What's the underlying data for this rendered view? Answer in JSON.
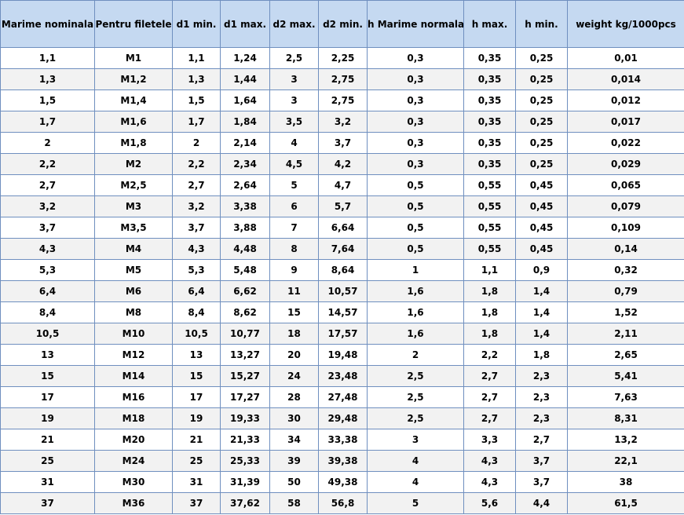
{
  "table": {
    "headers": [
      "Marime nominala",
      "Pentru filetele",
      "d1 min.",
      "d1 max.",
      "d2 max.",
      "d2 min.",
      "h Marime normala",
      "h max.",
      "h min.",
      "weight kg/1000pcs"
    ],
    "rows": [
      [
        "1,1",
        "M1",
        "1,1",
        "1,24",
        "2,5",
        "2,25",
        "0,3",
        "0,35",
        "0,25",
        "0,01"
      ],
      [
        "1,3",
        "M1,2",
        "1,3",
        "1,44",
        "3",
        "2,75",
        "0,3",
        "0,35",
        "0,25",
        "0,014"
      ],
      [
        "1,5",
        "M1,4",
        "1,5",
        "1,64",
        "3",
        "2,75",
        "0,3",
        "0,35",
        "0,25",
        "0,012"
      ],
      [
        "1,7",
        "M1,6",
        "1,7",
        "1,84",
        "3,5",
        "3,2",
        "0,3",
        "0,35",
        "0,25",
        "0,017"
      ],
      [
        "2",
        "M1,8",
        "2",
        "2,14",
        "4",
        "3,7",
        "0,3",
        "0,35",
        "0,25",
        "0,022"
      ],
      [
        "2,2",
        "M2",
        "2,2",
        "2,34",
        "4,5",
        "4,2",
        "0,3",
        "0,35",
        "0,25",
        "0,029"
      ],
      [
        "2,7",
        "M2,5",
        "2,7",
        "2,64",
        "5",
        "4,7",
        "0,5",
        "0,55",
        "0,45",
        "0,065"
      ],
      [
        "3,2",
        "M3",
        "3,2",
        "3,38",
        "6",
        "5,7",
        "0,5",
        "0,55",
        "0,45",
        "0,079"
      ],
      [
        "3,7",
        "M3,5",
        "3,7",
        "3,88",
        "7",
        "6,64",
        "0,5",
        "0,55",
        "0,45",
        "0,109"
      ],
      [
        "4,3",
        "M4",
        "4,3",
        "4,48",
        "8",
        "7,64",
        "0,5",
        "0,55",
        "0,45",
        "0,14"
      ],
      [
        "5,3",
        "M5",
        "5,3",
        "5,48",
        "9",
        "8,64",
        "1",
        "1,1",
        "0,9",
        "0,32"
      ],
      [
        "6,4",
        "M6",
        "6,4",
        "6,62",
        "11",
        "10,57",
        "1,6",
        "1,8",
        "1,4",
        "0,79"
      ],
      [
        "8,4",
        "M8",
        "8,4",
        "8,62",
        "15",
        "14,57",
        "1,6",
        "1,8",
        "1,4",
        "1,52"
      ],
      [
        "10,5",
        "M10",
        "10,5",
        "10,77",
        "18",
        "17,57",
        "1,6",
        "1,8",
        "1,4",
        "2,11"
      ],
      [
        "13",
        "M12",
        "13",
        "13,27",
        "20",
        "19,48",
        "2",
        "2,2",
        "1,8",
        "2,65"
      ],
      [
        "15",
        "M14",
        "15",
        "15,27",
        "24",
        "23,48",
        "2,5",
        "2,7",
        "2,3",
        "5,41"
      ],
      [
        "17",
        "M16",
        "17",
        "17,27",
        "28",
        "27,48",
        "2,5",
        "2,7",
        "2,3",
        "7,63"
      ],
      [
        "19",
        "M18",
        "19",
        "19,33",
        "30",
        "29,48",
        "2,5",
        "2,7",
        "2,3",
        "8,31"
      ],
      [
        "21",
        "M20",
        "21",
        "21,33",
        "34",
        "33,38",
        "3",
        "3,3",
        "2,7",
        "13,2"
      ],
      [
        "25",
        "M24",
        "25",
        "25,33",
        "39",
        "39,38",
        "4",
        "4,3",
        "3,7",
        "22,1"
      ],
      [
        "31",
        "M30",
        "31",
        "31,39",
        "50",
        "49,38",
        "4",
        "4,3",
        "3,7",
        "38"
      ],
      [
        "37",
        "M36",
        "37",
        "37,62",
        "58",
        "56,8",
        "5",
        "5,6",
        "4,4",
        "61,5"
      ]
    ]
  }
}
